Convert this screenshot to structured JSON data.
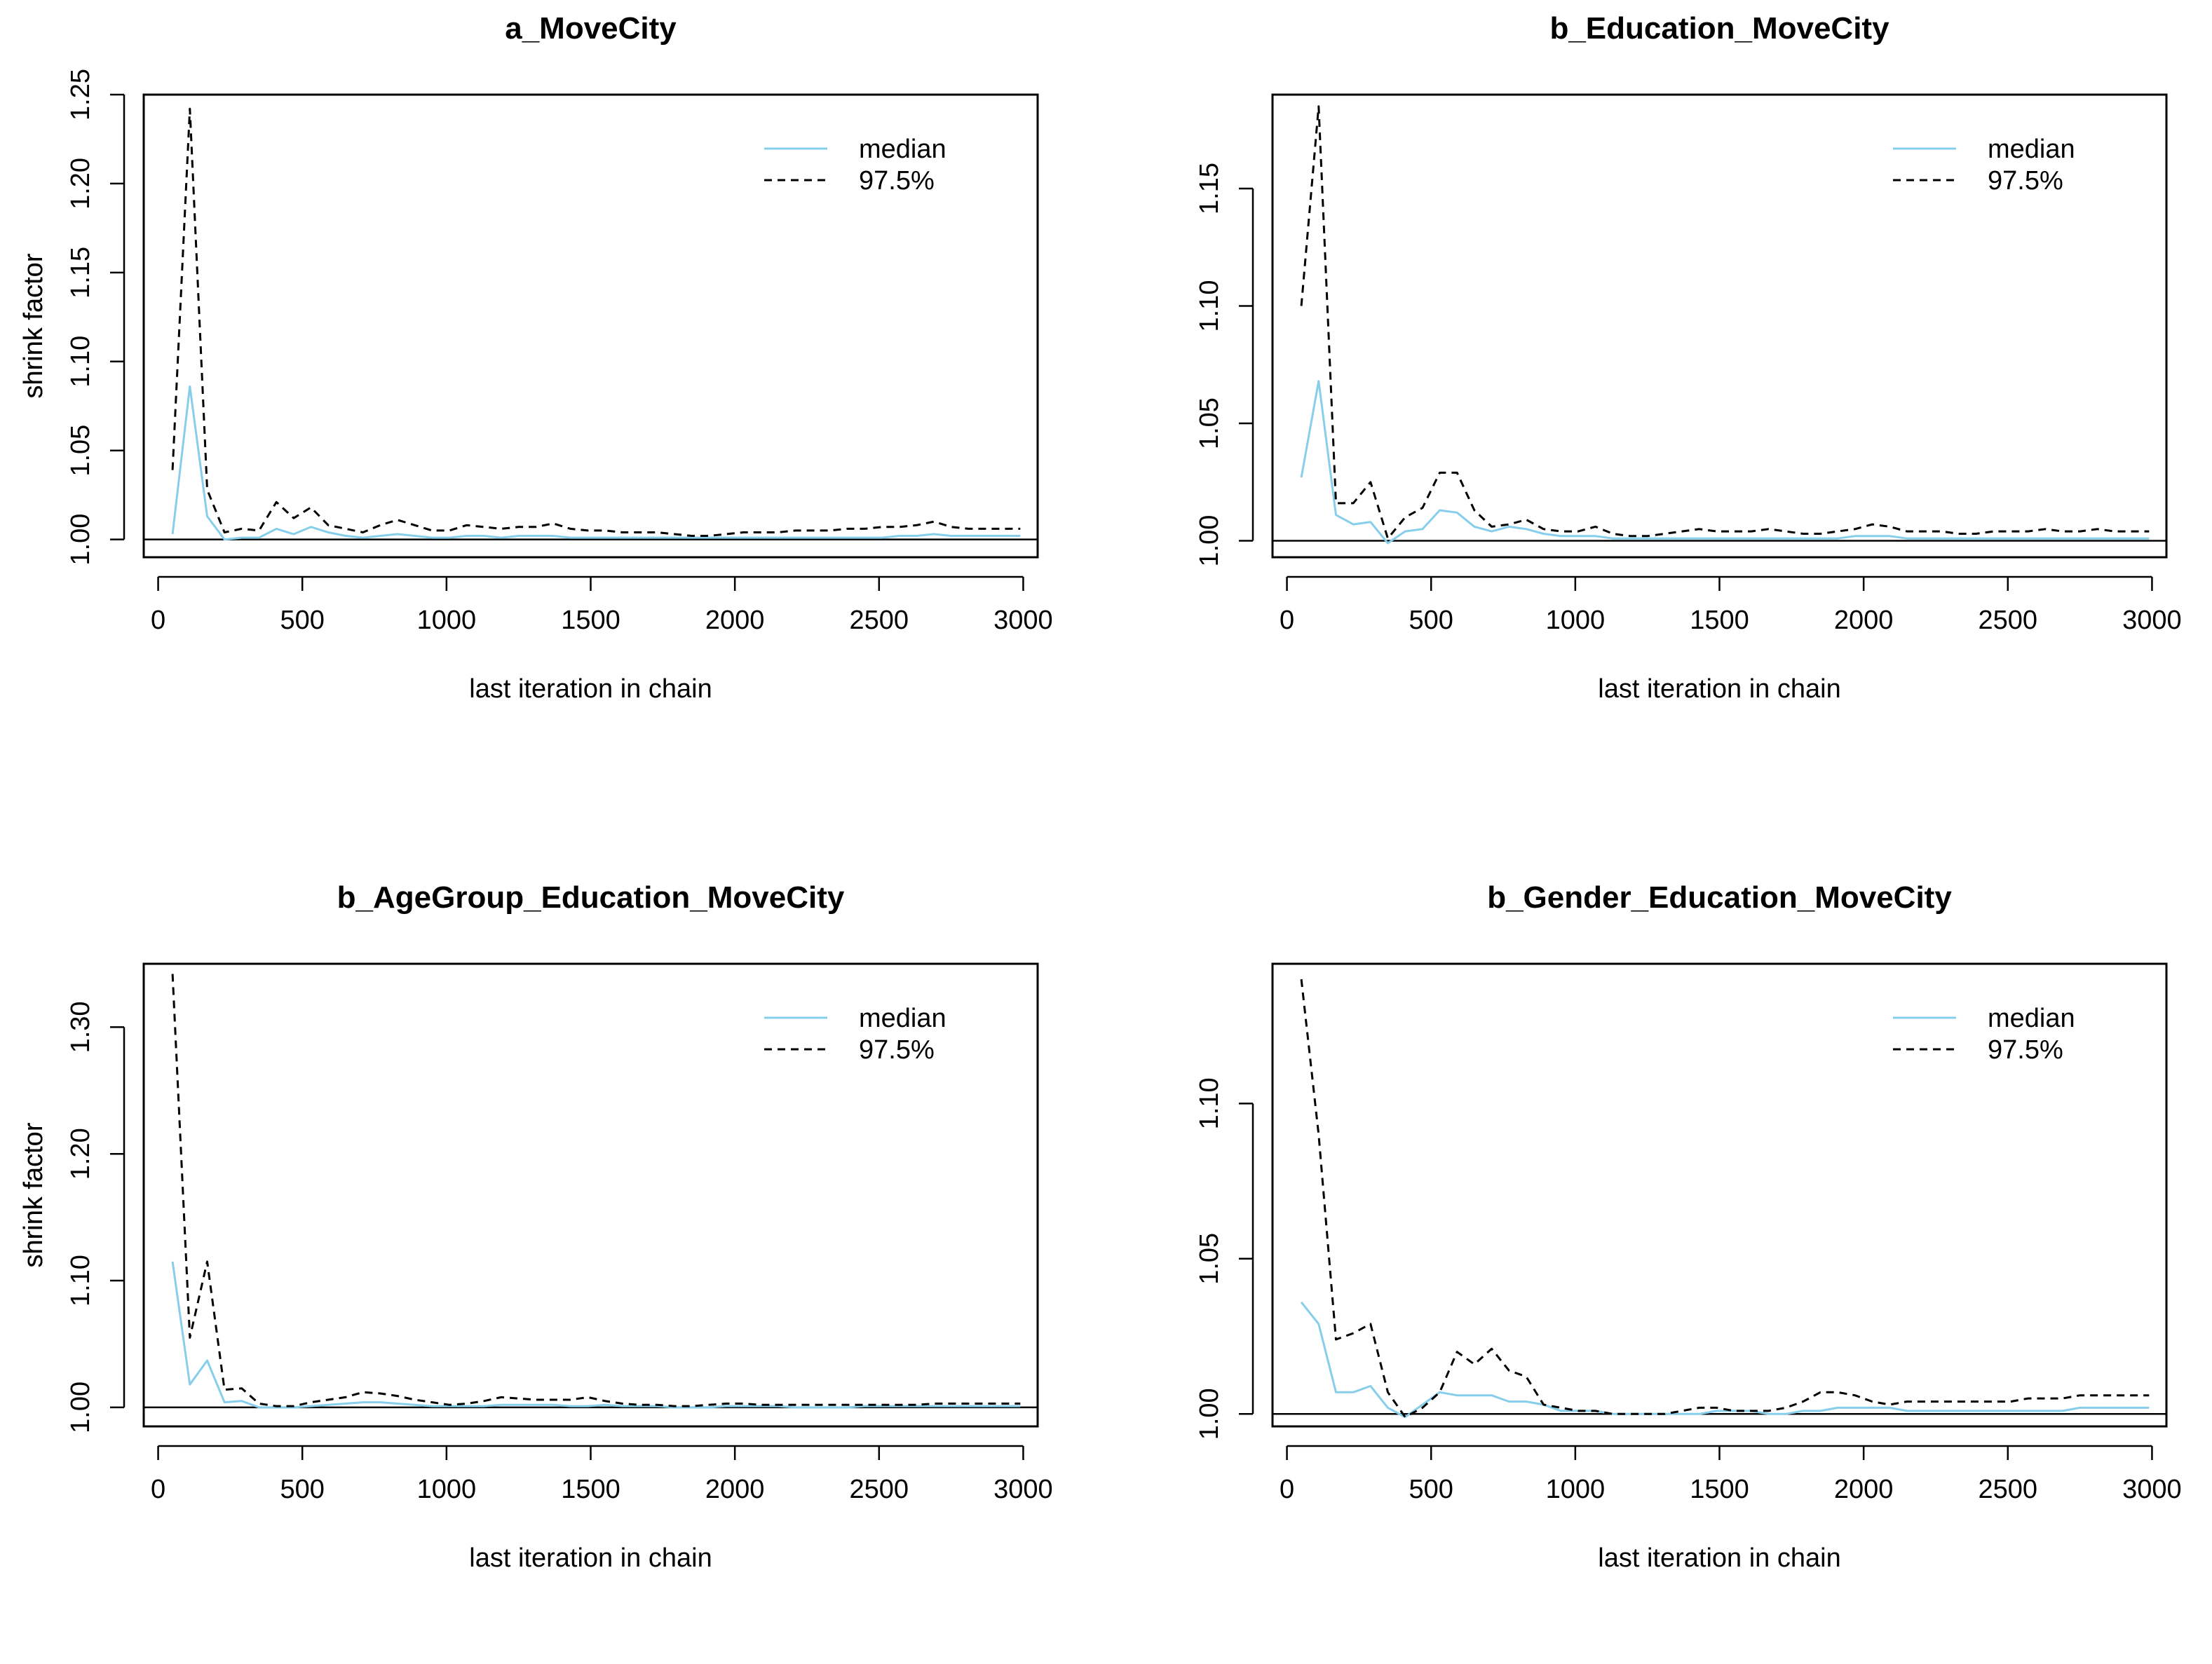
{
  "chart_data": [
    {
      "type": "line",
      "title": "a_MoveCity",
      "xlabel": "last iteration in chain",
      "ylabel": "shrink factor",
      "xlim": [
        -50,
        3050
      ],
      "ylim": [
        0.99,
        1.25
      ],
      "xticks": [
        0,
        500,
        1000,
        1500,
        2000,
        2500,
        3000
      ],
      "yticks": [
        "1.00",
        "1.05",
        "1.10",
        "1.15",
        "1.20",
        "1.25"
      ],
      "reference_line": 1.0,
      "legend": {
        "position": "top-right",
        "entries": [
          "median",
          "97.5%"
        ]
      },
      "series": [
        {
          "name": "median",
          "color": "#87ceeb",
          "style": "solid",
          "x": [
            50,
            110,
            170,
            230,
            290,
            350,
            410,
            470,
            530,
            590,
            650,
            710,
            770,
            830,
            890,
            950,
            1010,
            1070,
            1130,
            1190,
            1250,
            1310,
            1370,
            1430,
            1490,
            1550,
            1610,
            1670,
            1730,
            1790,
            1850,
            1910,
            1970,
            2030,
            2090,
            2150,
            2210,
            2270,
            2330,
            2390,
            2450,
            2510,
            2570,
            2630,
            2690,
            2750,
            2810,
            2870,
            2930,
            2990
          ],
          "y": [
            1.003,
            1.086,
            1.013,
            1.0,
            1.001,
            1.001,
            1.006,
            1.003,
            1.007,
            1.004,
            1.002,
            1.001,
            1.002,
            1.003,
            1.002,
            1.001,
            1.001,
            1.002,
            1.002,
            1.001,
            1.002,
            1.002,
            1.002,
            1.001,
            1.001,
            1.001,
            1.001,
            1.001,
            1.001,
            1.001,
            1.001,
            1.001,
            1.001,
            1.001,
            1.001,
            1.001,
            1.001,
            1.001,
            1.001,
            1.001,
            1.001,
            1.001,
            1.002,
            1.002,
            1.003,
            1.002,
            1.002,
            1.002,
            1.002,
            1.002
          ]
        },
        {
          "name": "97.5%",
          "color": "#000000",
          "style": "dashed",
          "x": [
            50,
            110,
            170,
            230,
            290,
            350,
            410,
            470,
            530,
            590,
            650,
            710,
            770,
            830,
            890,
            950,
            1010,
            1070,
            1130,
            1190,
            1250,
            1310,
            1370,
            1430,
            1490,
            1550,
            1610,
            1670,
            1730,
            1790,
            1850,
            1910,
            1970,
            2030,
            2090,
            2150,
            2210,
            2270,
            2330,
            2390,
            2450,
            2510,
            2570,
            2630,
            2690,
            2750,
            2810,
            2870,
            2930,
            2990
          ],
          "y": [
            1.039,
            1.242,
            1.028,
            1.004,
            1.006,
            1.005,
            1.021,
            1.012,
            1.018,
            1.008,
            1.006,
            1.004,
            1.008,
            1.011,
            1.008,
            1.005,
            1.005,
            1.008,
            1.007,
            1.006,
            1.007,
            1.007,
            1.009,
            1.006,
            1.005,
            1.005,
            1.004,
            1.004,
            1.004,
            1.003,
            1.002,
            1.002,
            1.003,
            1.004,
            1.004,
            1.004,
            1.005,
            1.005,
            1.005,
            1.006,
            1.006,
            1.007,
            1.007,
            1.008,
            1.01,
            1.007,
            1.006,
            1.006,
            1.006,
            1.006
          ]
        }
      ]
    },
    {
      "type": "line",
      "title": "b_Education_MoveCity",
      "xlabel": "last iteration in chain",
      "ylabel": "shrink factor",
      "xlim": [
        -50,
        3050
      ],
      "ylim": [
        0.993,
        1.19
      ],
      "xticks": [
        0,
        500,
        1000,
        1500,
        2000,
        2500,
        3000
      ],
      "yticks": [
        "1.00",
        "1.05",
        "1.10",
        "1.15"
      ],
      "reference_line": 1.0,
      "legend": {
        "position": "top-right",
        "entries": [
          "median",
          "97.5%"
        ]
      },
      "series": [
        {
          "name": "median",
          "color": "#87ceeb",
          "style": "solid",
          "x": [
            50,
            110,
            170,
            230,
            290,
            350,
            410,
            470,
            530,
            590,
            650,
            710,
            770,
            830,
            890,
            950,
            1010,
            1070,
            1130,
            1190,
            1250,
            1310,
            1370,
            1430,
            1490,
            1550,
            1610,
            1670,
            1730,
            1790,
            1850,
            1910,
            1970,
            2030,
            2090,
            2150,
            2210,
            2270,
            2330,
            2390,
            2450,
            2510,
            2570,
            2630,
            2690,
            2750,
            2810,
            2870,
            2930,
            2990
          ],
          "y": [
            1.027,
            1.068,
            1.011,
            1.007,
            1.008,
            0.999,
            1.004,
            1.005,
            1.013,
            1.012,
            1.006,
            1.004,
            1.006,
            1.005,
            1.003,
            1.002,
            1.002,
            1.002,
            1.001,
            1.001,
            1.001,
            1.001,
            1.001,
            1.001,
            1.001,
            1.001,
            1.001,
            1.001,
            1.001,
            1.001,
            1.001,
            1.001,
            1.002,
            1.002,
            1.002,
            1.001,
            1.001,
            1.001,
            1.001,
            1.001,
            1.001,
            1.001,
            1.001,
            1.001,
            1.001,
            1.001,
            1.001,
            1.001,
            1.001,
            1.001
          ]
        },
        {
          "name": "97.5%",
          "color": "#000000",
          "style": "dashed",
          "x": [
            50,
            110,
            170,
            230,
            290,
            350,
            410,
            470,
            530,
            590,
            650,
            710,
            770,
            830,
            890,
            950,
            1010,
            1070,
            1130,
            1190,
            1250,
            1310,
            1370,
            1430,
            1490,
            1550,
            1610,
            1670,
            1730,
            1790,
            1850,
            1910,
            1970,
            2030,
            2090,
            2150,
            2210,
            2270,
            2330,
            2390,
            2450,
            2510,
            2570,
            2630,
            2690,
            2750,
            2810,
            2870,
            2930,
            2990
          ],
          "y": [
            1.1,
            1.185,
            1.016,
            1.016,
            1.025,
            1.001,
            1.01,
            1.014,
            1.029,
            1.029,
            1.013,
            1.006,
            1.007,
            1.009,
            1.005,
            1.004,
            1.004,
            1.006,
            1.003,
            1.002,
            1.002,
            1.003,
            1.004,
            1.005,
            1.004,
            1.004,
            1.004,
            1.005,
            1.004,
            1.003,
            1.003,
            1.004,
            1.005,
            1.007,
            1.006,
            1.004,
            1.004,
            1.004,
            1.003,
            1.003,
            1.004,
            1.004,
            1.004,
            1.005,
            1.004,
            1.004,
            1.005,
            1.004,
            1.004,
            1.004
          ]
        }
      ]
    },
    {
      "type": "line",
      "title": "b_AgeGroup_Education_MoveCity",
      "xlabel": "last iteration in chain",
      "ylabel": "shrink factor",
      "xlim": [
        -50,
        3050
      ],
      "ylim": [
        0.985,
        1.35
      ],
      "xticks": [
        0,
        500,
        1000,
        1500,
        2000,
        2500,
        3000
      ],
      "yticks": [
        "1.00",
        "1.10",
        "1.20",
        "1.30"
      ],
      "reference_line": 1.0,
      "legend": {
        "position": "top-right",
        "entries": [
          "median",
          "97.5%"
        ]
      },
      "series": [
        {
          "name": "median",
          "color": "#87ceeb",
          "style": "solid",
          "x": [
            50,
            110,
            170,
            230,
            290,
            350,
            410,
            470,
            530,
            590,
            650,
            710,
            770,
            830,
            890,
            950,
            1010,
            1070,
            1130,
            1190,
            1250,
            1310,
            1370,
            1430,
            1490,
            1550,
            1610,
            1670,
            1730,
            1790,
            1850,
            1910,
            1970,
            2030,
            2090,
            2150,
            2210,
            2270,
            2330,
            2390,
            2450,
            2510,
            2570,
            2630,
            2690,
            2750,
            2810,
            2870,
            2930,
            2990
          ],
          "y": [
            1.115,
            1.018,
            1.037,
            1.004,
            1.005,
            1.0,
            1.0,
            1.0,
            1.001,
            1.002,
            1.003,
            1.004,
            1.004,
            1.003,
            1.002,
            1.001,
            1.001,
            1.001,
            1.001,
            1.002,
            1.002,
            1.002,
            1.002,
            1.001,
            1.001,
            1.002,
            1.001,
            1.001,
            1.001,
            1.0,
            1.0,
            1.0,
            1.001,
            1.001,
            1.001,
            1.001,
            1.0,
            1.0,
            1.0,
            1.0,
            1.001,
            1.001,
            1.001,
            1.001,
            1.001,
            1.001,
            1.001,
            1.001,
            1.001,
            1.001
          ]
        },
        {
          "name": "97.5%",
          "color": "#000000",
          "style": "dashed",
          "x": [
            50,
            110,
            170,
            230,
            290,
            350,
            410,
            470,
            530,
            590,
            650,
            710,
            770,
            830,
            890,
            950,
            1010,
            1070,
            1130,
            1190,
            1250,
            1310,
            1370,
            1430,
            1490,
            1550,
            1610,
            1670,
            1730,
            1790,
            1850,
            1910,
            1970,
            2030,
            2090,
            2150,
            2210,
            2270,
            2330,
            2390,
            2450,
            2510,
            2570,
            2630,
            2690,
            2750,
            2810,
            2870,
            2930,
            2990
          ],
          "y": [
            1.342,
            1.055,
            1.115,
            1.014,
            1.015,
            1.003,
            1.001,
            1.001,
            1.004,
            1.006,
            1.008,
            1.012,
            1.011,
            1.009,
            1.006,
            1.004,
            1.002,
            1.003,
            1.005,
            1.008,
            1.007,
            1.006,
            1.006,
            1.006,
            1.008,
            1.005,
            1.003,
            1.002,
            1.002,
            1.001,
            1.001,
            1.002,
            1.003,
            1.003,
            1.002,
            1.002,
            1.002,
            1.002,
            1.002,
            1.002,
            1.002,
            1.002,
            1.002,
            1.002,
            1.003,
            1.003,
            1.003,
            1.003,
            1.003,
            1.003
          ]
        }
      ]
    },
    {
      "type": "line",
      "title": "b_Gender_Education_MoveCity",
      "xlabel": "last iteration in chain",
      "ylabel": "shrink factor",
      "xlim": [
        -50,
        3050
      ],
      "ylim": [
        0.996,
        1.145
      ],
      "xticks": [
        0,
        500,
        1000,
        1500,
        2000,
        2500,
        3000
      ],
      "yticks": [
        "1.00",
        "1.05",
        "1.10"
      ],
      "reference_line": 1.0,
      "legend": {
        "position": "top-right",
        "entries": [
          "median",
          "97.5%"
        ]
      },
      "series": [
        {
          "name": "median",
          "color": "#87ceeb",
          "style": "solid",
          "x": [
            50,
            110,
            170,
            230,
            290,
            350,
            410,
            470,
            530,
            590,
            650,
            710,
            770,
            830,
            890,
            950,
            1010,
            1070,
            1130,
            1190,
            1250,
            1310,
            1370,
            1430,
            1490,
            1550,
            1610,
            1670,
            1730,
            1790,
            1850,
            1910,
            1970,
            2030,
            2090,
            2150,
            2210,
            2270,
            2330,
            2390,
            2450,
            2510,
            2570,
            2630,
            2690,
            2750,
            2810,
            2870,
            2930,
            2990
          ],
          "y": [
            1.036,
            1.029,
            1.007,
            1.007,
            1.009,
            1.002,
            0.999,
            1.003,
            1.007,
            1.006,
            1.006,
            1.006,
            1.004,
            1.004,
            1.003,
            1.001,
            1.001,
            1.001,
            1.0,
            1.0,
            1.0,
            1.0,
            1.0,
            1.0,
            1.001,
            1.001,
            1.001,
            1.0,
            1.0,
            1.001,
            1.001,
            1.002,
            1.002,
            1.002,
            1.002,
            1.001,
            1.001,
            1.001,
            1.001,
            1.001,
            1.001,
            1.001,
            1.001,
            1.001,
            1.001,
            1.002,
            1.002,
            1.002,
            1.002,
            1.002
          ]
        },
        {
          "name": "97.5%",
          "color": "#000000",
          "style": "dashed",
          "x": [
            50,
            110,
            170,
            230,
            290,
            350,
            410,
            470,
            530,
            590,
            650,
            710,
            770,
            830,
            890,
            950,
            1010,
            1070,
            1130,
            1190,
            1250,
            1310,
            1370,
            1430,
            1490,
            1550,
            1610,
            1670,
            1730,
            1790,
            1850,
            1910,
            1970,
            2030,
            2090,
            2150,
            2210,
            2270,
            2330,
            2390,
            2450,
            2510,
            2570,
            2630,
            2690,
            2750,
            2810,
            2870,
            2930,
            2990
          ],
          "y": [
            1.14,
            1.09,
            1.024,
            1.026,
            1.029,
            1.007,
            0.999,
            1.002,
            1.007,
            1.02,
            1.016,
            1.021,
            1.014,
            1.012,
            1.003,
            1.002,
            1.001,
            1.001,
            1.0,
            1.0,
            1.0,
            1.0,
            1.001,
            1.002,
            1.002,
            1.001,
            1.001,
            1.001,
            1.002,
            1.004,
            1.007,
            1.007,
            1.006,
            1.004,
            1.003,
            1.004,
            1.004,
            1.004,
            1.004,
            1.004,
            1.004,
            1.004,
            1.005,
            1.005,
            1.005,
            1.006,
            1.006,
            1.006,
            1.006,
            1.006
          ]
        }
      ]
    }
  ]
}
